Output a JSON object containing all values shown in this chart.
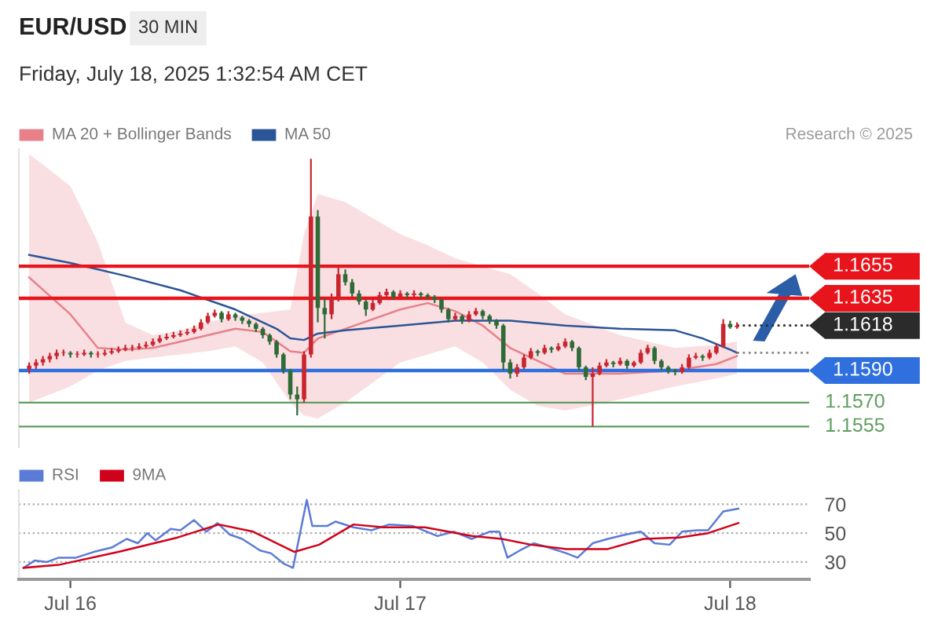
{
  "chart_data": [
    {
      "type": "candlestick",
      "title": "EUR/USD",
      "subtitle": "Friday, July 18, 2025 1:32:54 AM CET",
      "annotations": [
        "30 MIN",
        "Research © 2025"
      ],
      "x": [
        "2025-07-15T21:00",
        "2025-07-15T21:30",
        "2025-07-15T22:00",
        "2025-07-15T22:30",
        "2025-07-15T23:00",
        "2025-07-15T23:30",
        "2025-07-16T00:00",
        "2025-07-16T00:30",
        "2025-07-16T01:00",
        "2025-07-16T01:30",
        "2025-07-16T02:00",
        "2025-07-16T02:30",
        "2025-07-16T03:00",
        "2025-07-16T03:30",
        "2025-07-16T04:00",
        "2025-07-16T04:30",
        "2025-07-16T05:00",
        "2025-07-16T05:30",
        "2025-07-16T06:00",
        "2025-07-16T06:30",
        "2025-07-16T07:00",
        "2025-07-16T07:30",
        "2025-07-16T08:00",
        "2025-07-16T08:30",
        "2025-07-16T09:00",
        "2025-07-16T09:30",
        "2025-07-16T10:00",
        "2025-07-16T10:30",
        "2025-07-16T11:00",
        "2025-07-16T11:30",
        "2025-07-16T12:00",
        "2025-07-16T12:30",
        "2025-07-16T13:00",
        "2025-07-16T13:30",
        "2025-07-16T14:00",
        "2025-07-16T14:30",
        "2025-07-16T15:00",
        "2025-07-16T15:30",
        "2025-07-16T16:00",
        "2025-07-16T16:30",
        "2025-07-16T17:00",
        "2025-07-16T17:30",
        "2025-07-16T18:00",
        "2025-07-16T18:30",
        "2025-07-16T19:00",
        "2025-07-16T19:30",
        "2025-07-16T20:00",
        "2025-07-16T20:30",
        "2025-07-16T21:00",
        "2025-07-16T21:30",
        "2025-07-16T22:00",
        "2025-07-16T22:30",
        "2025-07-16T23:00",
        "2025-07-16T23:30",
        "2025-07-17T00:00",
        "2025-07-17T00:30",
        "2025-07-17T01:00",
        "2025-07-17T01:30",
        "2025-07-17T02:00",
        "2025-07-17T02:30",
        "2025-07-17T03:00",
        "2025-07-17T03:30",
        "2025-07-17T04:00",
        "2025-07-17T04:30",
        "2025-07-17T05:00",
        "2025-07-17T05:30",
        "2025-07-17T06:00",
        "2025-07-17T06:30",
        "2025-07-17T07:00",
        "2025-07-17T07:30",
        "2025-07-17T08:00",
        "2025-07-17T08:30",
        "2025-07-17T09:00",
        "2025-07-17T09:30",
        "2025-07-17T10:00",
        "2025-07-17T10:30",
        "2025-07-17T11:00",
        "2025-07-17T11:30",
        "2025-07-17T12:00",
        "2025-07-17T12:30",
        "2025-07-17T13:00",
        "2025-07-17T13:30",
        "2025-07-17T14:00",
        "2025-07-17T14:30",
        "2025-07-17T15:00",
        "2025-07-17T15:30",
        "2025-07-17T16:00",
        "2025-07-17T16:30",
        "2025-07-17T17:00",
        "2025-07-17T17:30",
        "2025-07-17T18:00",
        "2025-07-17T18:30",
        "2025-07-17T19:00",
        "2025-07-17T19:30",
        "2025-07-17T20:00",
        "2025-07-17T20:30",
        "2025-07-17T21:00",
        "2025-07-17T21:30",
        "2025-07-17T22:00",
        "2025-07-17T22:30",
        "2025-07-17T23:00",
        "2025-07-17T23:30",
        "2025-07-18T00:00",
        "2025-07-18T00:30"
      ],
      "ohlc": [
        [
          1.1591,
          1.1595,
          1.1588,
          1.1593
        ],
        [
          1.1593,
          1.1597,
          1.1591,
          1.1595
        ],
        [
          1.1595,
          1.1599,
          1.1593,
          1.1597
        ],
        [
          1.1597,
          1.1601,
          1.1595,
          1.1599
        ],
        [
          1.1599,
          1.1603,
          1.1597,
          1.1601
        ],
        [
          1.1601,
          1.1603,
          1.1599,
          1.1601
        ],
        [
          1.1601,
          1.1602,
          1.1598,
          1.16
        ],
        [
          1.16,
          1.1602,
          1.1598,
          1.16
        ],
        [
          1.16,
          1.1603,
          1.1599,
          1.1601
        ],
        [
          1.1601,
          1.1602,
          1.1598,
          1.16
        ],
        [
          1.16,
          1.1602,
          1.1598,
          1.16
        ],
        [
          1.16,
          1.1603,
          1.1599,
          1.1601
        ],
        [
          1.1601,
          1.1604,
          1.16,
          1.1602
        ],
        [
          1.1602,
          1.1605,
          1.1601,
          1.1603
        ],
        [
          1.1603,
          1.1606,
          1.1602,
          1.1604
        ],
        [
          1.1604,
          1.1606,
          1.1602,
          1.1604
        ],
        [
          1.1604,
          1.1607,
          1.1603,
          1.1605
        ],
        [
          1.1605,
          1.1608,
          1.1604,
          1.1606
        ],
        [
          1.1606,
          1.161,
          1.1605,
          1.1608
        ],
        [
          1.1608,
          1.1612,
          1.1607,
          1.161
        ],
        [
          1.161,
          1.1613,
          1.1609,
          1.1611
        ],
        [
          1.1611,
          1.1614,
          1.161,
          1.1612
        ],
        [
          1.1612,
          1.1615,
          1.1611,
          1.1613
        ],
        [
          1.1613,
          1.1616,
          1.1612,
          1.1614
        ],
        [
          1.1614,
          1.1618,
          1.1613,
          1.1616
        ],
        [
          1.1616,
          1.1622,
          1.1615,
          1.162
        ],
        [
          1.162,
          1.1626,
          1.1619,
          1.1624
        ],
        [
          1.1624,
          1.1628,
          1.1623,
          1.1626
        ],
        [
          1.1626,
          1.1627,
          1.162,
          1.1622
        ],
        [
          1.1622,
          1.1627,
          1.1621,
          1.1625
        ],
        [
          1.1625,
          1.1626,
          1.1621,
          1.1623
        ],
        [
          1.1623,
          1.1624,
          1.1619,
          1.1621
        ],
        [
          1.1621,
          1.1622,
          1.1617,
          1.1619
        ],
        [
          1.1619,
          1.162,
          1.1614,
          1.1616
        ],
        [
          1.1616,
          1.1617,
          1.161,
          1.1612
        ],
        [
          1.1612,
          1.1613,
          1.1606,
          1.1608
        ],
        [
          1.1608,
          1.1609,
          1.1598,
          1.16
        ],
        [
          1.16,
          1.1601,
          1.1588,
          1.159
        ],
        [
          1.159,
          1.1591,
          1.1572,
          1.1575
        ],
        [
          1.1575,
          1.158,
          1.1562,
          1.1572
        ],
        [
          1.1572,
          1.1602,
          1.157,
          1.16
        ],
        [
          1.16,
          1.1722,
          1.1598,
          1.1686
        ],
        [
          1.1686,
          1.169,
          1.162,
          1.1629
        ],
        [
          1.1629,
          1.1635,
          1.161,
          1.1625
        ],
        [
          1.1625,
          1.1638,
          1.1622,
          1.1635
        ],
        [
          1.1635,
          1.1655,
          1.1633,
          1.165
        ],
        [
          1.165,
          1.1653,
          1.1643,
          1.1645
        ],
        [
          1.1645,
          1.1647,
          1.1636,
          1.1638
        ],
        [
          1.1638,
          1.164,
          1.1631,
          1.1633
        ],
        [
          1.1633,
          1.1634,
          1.1624,
          1.1628
        ],
        [
          1.1628,
          1.1634,
          1.1627,
          1.1632
        ],
        [
          1.1632,
          1.1639,
          1.1631,
          1.1637
        ],
        [
          1.1637,
          1.1641,
          1.1635,
          1.1639
        ],
        [
          1.1639,
          1.164,
          1.1634,
          1.1636
        ],
        [
          1.1636,
          1.164,
          1.1635,
          1.1638
        ],
        [
          1.1638,
          1.1639,
          1.1635,
          1.1637
        ],
        [
          1.1637,
          1.164,
          1.1636,
          1.1638
        ],
        [
          1.1638,
          1.1639,
          1.1635,
          1.1637
        ],
        [
          1.1637,
          1.1638,
          1.1634,
          1.1636
        ],
        [
          1.1636,
          1.1637,
          1.1632,
          1.1634
        ],
        [
          1.1634,
          1.1635,
          1.1626,
          1.1628
        ],
        [
          1.1628,
          1.1629,
          1.162,
          1.1622
        ],
        [
          1.1622,
          1.1626,
          1.1621,
          1.1624
        ],
        [
          1.1624,
          1.1625,
          1.1619,
          1.1621
        ],
        [
          1.1621,
          1.1627,
          1.162,
          1.1625
        ],
        [
          1.1625,
          1.1629,
          1.1624,
          1.1627
        ],
        [
          1.1627,
          1.1628,
          1.1622,
          1.1624
        ],
        [
          1.1624,
          1.1625,
          1.1619,
          1.1621
        ],
        [
          1.1621,
          1.1622,
          1.1616,
          1.1618
        ],
        [
          1.1618,
          1.1619,
          1.159,
          1.1595
        ],
        [
          1.1595,
          1.1597,
          1.1585,
          1.1588
        ],
        [
          1.1588,
          1.1594,
          1.1586,
          1.1592
        ],
        [
          1.1592,
          1.16,
          1.1591,
          1.1598
        ],
        [
          1.1598,
          1.1604,
          1.1597,
          1.1602
        ],
        [
          1.1602,
          1.1603,
          1.1599,
          1.1601
        ],
        [
          1.1601,
          1.1606,
          1.16,
          1.1604
        ],
        [
          1.1604,
          1.1605,
          1.1601,
          1.1603
        ],
        [
          1.1603,
          1.1607,
          1.1602,
          1.1605
        ],
        [
          1.1605,
          1.161,
          1.1604,
          1.1608
        ],
        [
          1.1608,
          1.1609,
          1.1602,
          1.1604
        ],
        [
          1.1604,
          1.1605,
          1.159,
          1.1592
        ],
        [
          1.1592,
          1.1593,
          1.1584,
          1.1586
        ],
        [
          1.1586,
          1.1592,
          1.1555,
          1.1588
        ],
        [
          1.1588,
          1.1595,
          1.1587,
          1.1593
        ],
        [
          1.1593,
          1.1597,
          1.1592,
          1.1595
        ],
        [
          1.1595,
          1.1596,
          1.1592,
          1.1594
        ],
        [
          1.1594,
          1.1598,
          1.1593,
          1.1596
        ],
        [
          1.1596,
          1.1597,
          1.1591,
          1.1593
        ],
        [
          1.1593,
          1.1596,
          1.1592,
          1.1595
        ],
        [
          1.1595,
          1.1603,
          1.1594,
          1.1601
        ],
        [
          1.1601,
          1.1606,
          1.16,
          1.1604
        ],
        [
          1.1604,
          1.1605,
          1.1594,
          1.1596
        ],
        [
          1.1596,
          1.1597,
          1.159,
          1.1592
        ],
        [
          1.1592,
          1.1593,
          1.1588,
          1.159
        ],
        [
          1.159,
          1.1591,
          1.1587,
          1.1589
        ],
        [
          1.1589,
          1.1594,
          1.1588,
          1.1592
        ],
        [
          1.1592,
          1.16,
          1.1591,
          1.1598
        ],
        [
          1.1598,
          1.1601,
          1.1597,
          1.1599
        ],
        [
          1.1599,
          1.16,
          1.1596,
          1.1598
        ],
        [
          1.1598,
          1.1603,
          1.1597,
          1.1601
        ],
        [
          1.1601,
          1.1607,
          1.16,
          1.1605
        ],
        [
          1.1605,
          1.1622,
          1.1604,
          1.1619
        ],
        [
          1.1619,
          1.1621,
          1.1616,
          1.1617
        ],
        [
          1.1617,
          1.162,
          1.1616,
          1.1618
        ]
      ],
      "series": [
        {
          "name": "MA 20 + Bollinger Bands",
          "type": "line",
          "color": "#e8808a",
          "x": [
            "2025-07-15T21:00",
            "2025-07-16T00:00",
            "2025-07-16T02:00",
            "2025-07-16T04:00",
            "2025-07-16T06:00",
            "2025-07-16T08:00",
            "2025-07-16T10:00",
            "2025-07-16T12:00",
            "2025-07-16T14:00",
            "2025-07-16T16:00",
            "2025-07-16T17:00",
            "2025-07-16T18:00",
            "2025-07-16T20:00",
            "2025-07-17T00:00",
            "2025-07-17T02:00",
            "2025-07-17T04:00",
            "2025-07-17T06:00",
            "2025-07-17T08:00",
            "2025-07-17T10:00",
            "2025-07-17T12:00",
            "2025-07-17T16:00",
            "2025-07-17T20:00",
            "2025-07-17T23:00",
            "2025-07-18T00:30"
          ],
          "values": [
            1.1648,
            1.1625,
            1.1604,
            1.1603,
            1.1604,
            1.1608,
            1.1612,
            1.1616,
            1.1614,
            1.1602,
            1.1601,
            1.161,
            1.1616,
            1.1628,
            1.1632,
            1.1627,
            1.1618,
            1.1604,
            1.1596,
            1.1588,
            1.1588,
            1.159,
            1.1594,
            1.1599
          ],
          "upper": [
            1.1725,
            1.1705,
            1.167,
            1.162,
            1.1612,
            1.1615,
            1.162,
            1.1624,
            1.1626,
            1.1628,
            1.1675,
            1.17,
            1.1695,
            1.1675,
            1.1668,
            1.166,
            1.1655,
            1.165,
            1.1638,
            1.1625,
            1.1612,
            1.1604,
            1.1606,
            1.1608
          ],
          "lower": [
            1.157,
            1.158,
            1.159,
            1.1596,
            1.1598,
            1.16,
            1.1602,
            1.1605,
            1.1595,
            1.157,
            1.1562,
            1.156,
            1.157,
            1.1595,
            1.16,
            1.1605,
            1.1595,
            1.1578,
            1.1568,
            1.1565,
            1.1572,
            1.158,
            1.1585,
            1.1588
          ]
        },
        {
          "name": "MA 50",
          "type": "line",
          "color": "#2b5597",
          "x": [
            "2025-07-15T21:00",
            "2025-07-16T00:00",
            "2025-07-16T04:00",
            "2025-07-16T08:00",
            "2025-07-16T12:00",
            "2025-07-16T15:00",
            "2025-07-16T16:00",
            "2025-07-16T17:00",
            "2025-07-16T18:00",
            "2025-07-16T20:00",
            "2025-07-17T00:00",
            "2025-07-17T04:00",
            "2025-07-17T08:00",
            "2025-07-17T12:00",
            "2025-07-17T16:00",
            "2025-07-17T20:00",
            "2025-07-17T22:00",
            "2025-07-18T00:00",
            "2025-07-18T00:30"
          ],
          "values": [
            1.1662,
            1.1657,
            1.1649,
            1.164,
            1.1628,
            1.1616,
            1.161,
            1.1609,
            1.1613,
            1.1615,
            1.1618,
            1.1621,
            1.1621,
            1.1618,
            1.1616,
            1.1615,
            1.161,
            1.1603,
            1.1601
          ]
        }
      ],
      "ref_lines": [
        {
          "axis": "y",
          "value": 1.1655,
          "label": "1.1655",
          "color": "#e8141c"
        },
        {
          "axis": "y",
          "value": 1.1635,
          "label": "1.1635",
          "color": "#e8141c"
        },
        {
          "axis": "y",
          "value": 1.1618,
          "label": "1.1618",
          "color": "#2b2b2b",
          "line_style": "dotted"
        },
        {
          "axis": "y",
          "value": 1.1601,
          "label": null,
          "color": "#888888",
          "line_style": "dotted"
        },
        {
          "axis": "y",
          "value": 1.159,
          "label": "1.1590",
          "color": "#2f6fde"
        },
        {
          "axis": "y",
          "value": 1.157,
          "label": "1.1570",
          "color": "#5f9e5f"
        },
        {
          "axis": "y",
          "value": 1.1555,
          "label": "1.1555",
          "color": "#5f9e5f"
        }
      ],
      "xlim": [
        "2025-07-15T20:15",
        "2025-07-18T05:45"
      ],
      "ylim": [
        1.1542,
        1.1728
      ],
      "legend": "top left",
      "tick_labels": false
    },
    {
      "type": "line",
      "series": [
        {
          "name": "RSI",
          "color": "#5b7bd5",
          "x": [
            "2025-07-15T20:36",
            "2025-07-15T21:24",
            "2025-07-15T22:18",
            "2025-07-15T23:09",
            "2025-07-16T00:24",
            "2025-07-16T01:42",
            "2025-07-16T03:00",
            "2025-07-16T04:06",
            "2025-07-16T04:54",
            "2025-07-16T05:36",
            "2025-07-16T06:12",
            "2025-07-16T07:18",
            "2025-07-16T08:00",
            "2025-07-16T09:00",
            "2025-07-16T09:54",
            "2025-07-16T10:42",
            "2025-07-16T11:36",
            "2025-07-16T12:30",
            "2025-07-16T13:48",
            "2025-07-16T14:36",
            "2025-07-16T15:30",
            "2025-07-16T16:12",
            "2025-07-16T17:12",
            "2025-07-16T17:36",
            "2025-07-16T18:42",
            "2025-07-16T19:18",
            "2025-07-16T20:36",
            "2025-07-16T21:54",
            "2025-07-16T23:12",
            "2025-07-17T00:54",
            "2025-07-17T02:42",
            "2025-07-17T03:54",
            "2025-07-17T05:12",
            "2025-07-17T06:30",
            "2025-07-17T07:12",
            "2025-07-17T07:48",
            "2025-07-17T08:42",
            "2025-07-17T09:42",
            "2025-07-17T10:48",
            "2025-07-17T12:06",
            "2025-07-17T12:54",
            "2025-07-17T14:00",
            "2025-07-17T15:06",
            "2025-07-17T16:24",
            "2025-07-17T17:30",
            "2025-07-17T18:30",
            "2025-07-17T19:36",
            "2025-07-17T20:30",
            "2025-07-17T21:36",
            "2025-07-17T22:24",
            "2025-07-17T23:30",
            "2025-07-18T00:36"
          ],
          "values": [
            26,
            31,
            30,
            33,
            33,
            37,
            40,
            46,
            43,
            50,
            45,
            53,
            52,
            59,
            51,
            57,
            49,
            46,
            38,
            36,
            29,
            26,
            73,
            55,
            55,
            58,
            54,
            52,
            56,
            55,
            48,
            51,
            46,
            51,
            51,
            33,
            38,
            43,
            40,
            36,
            33,
            43,
            46,
            49,
            51,
            43,
            42,
            51,
            52,
            52,
            65,
            67
          ]
        },
        {
          "name": "9MA",
          "color": "#d0021b",
          "x": [
            "2025-07-15T20:36",
            "2025-07-15T23:09",
            "2025-07-16T03:30",
            "2025-07-16T07:48",
            "2025-07-16T10:48",
            "2025-07-16T13:18",
            "2025-07-16T16:18",
            "2025-07-16T18:06",
            "2025-07-16T20:36",
            "2025-07-16T22:48",
            "2025-07-17T01:48",
            "2025-07-17T05:12",
            "2025-07-17T07:24",
            "2025-07-17T09:30",
            "2025-07-17T12:06",
            "2025-07-17T15:06",
            "2025-07-17T17:42",
            "2025-07-17T20:18",
            "2025-07-17T22:24",
            "2025-07-18T00:36"
          ],
          "values": [
            26,
            28,
            37,
            47,
            56,
            51,
            37,
            42,
            56,
            54,
            54,
            48,
            46,
            42,
            39,
            39,
            46,
            47,
            50,
            57
          ]
        }
      ],
      "xlim": [
        "2025-07-15T20:15",
        "2025-07-18T05:45"
      ],
      "xticks": [
        {
          "value": "2025-07-16",
          "label": "Jul 16"
        },
        {
          "value": "2025-07-17",
          "label": "Jul 17"
        },
        {
          "value": "2025-07-18",
          "label": "Jul 18"
        }
      ],
      "ylim": [
        18,
        80
      ],
      "yticks": [
        30,
        50,
        70
      ],
      "grid": "y",
      "legend": "top left"
    }
  ]
}
